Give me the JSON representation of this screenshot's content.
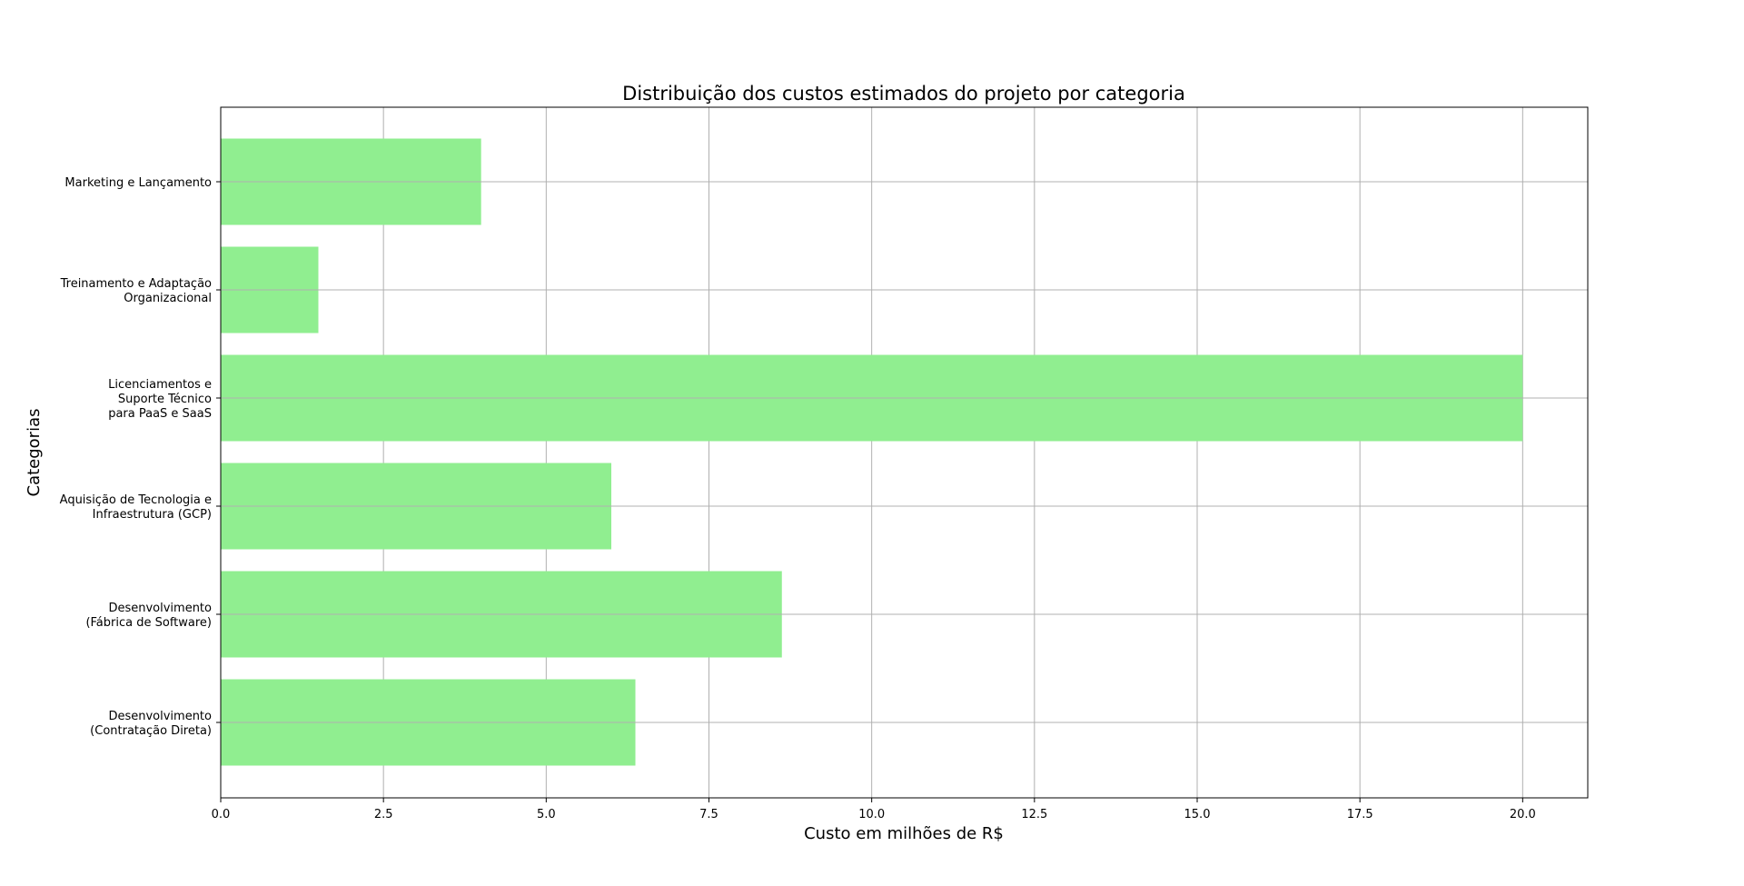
{
  "chart_data": {
    "type": "bar",
    "orientation": "horizontal",
    "title": "Distribuição dos custos estimados do projeto por categoria",
    "xlabel": "Custo em milhões de R$",
    "ylabel": "Categorias",
    "xlim": [
      0,
      21
    ],
    "x_ticks": [
      "0.0",
      "2.5",
      "5.0",
      "7.5",
      "10.0",
      "12.5",
      "15.0",
      "17.5",
      "20.0"
    ],
    "grid": true,
    "bar_color": "#90EE90",
    "categories": [
      [
        "Desenvolvimento",
        "(Contratação Direta)"
      ],
      [
        "Desenvolvimento",
        "(Fábrica de Software)"
      ],
      [
        "Aquisição de Tecnologia e",
        "Infraestrutura (GCP)"
      ],
      [
        "Licenciamentos e",
        "Suporte Técnico",
        "para PaaS e SaaS"
      ],
      [
        "Treinamento e Adaptação",
        "Organizacional"
      ],
      [
        "Marketing e Lançamento"
      ]
    ],
    "values": [
      6.37,
      8.62,
      6.0,
      20.0,
      1.5,
      4.0
    ]
  }
}
